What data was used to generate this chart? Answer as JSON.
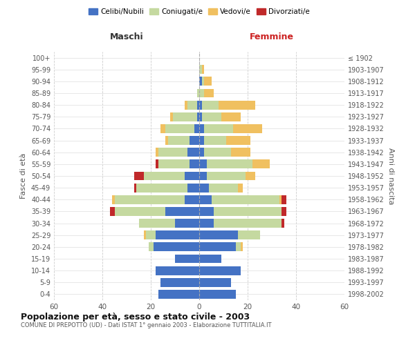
{
  "age_groups": [
    "0-4",
    "5-9",
    "10-14",
    "15-19",
    "20-24",
    "25-29",
    "30-34",
    "35-39",
    "40-44",
    "45-49",
    "50-54",
    "55-59",
    "60-64",
    "65-69",
    "70-74",
    "75-79",
    "80-84",
    "85-89",
    "90-94",
    "95-99",
    "100+"
  ],
  "birth_years": [
    "1998-2002",
    "1993-1997",
    "1988-1992",
    "1983-1987",
    "1978-1982",
    "1973-1977",
    "1968-1972",
    "1963-1967",
    "1958-1962",
    "1953-1957",
    "1948-1952",
    "1943-1947",
    "1938-1942",
    "1933-1937",
    "1928-1932",
    "1923-1927",
    "1918-1922",
    "1913-1917",
    "1908-1912",
    "1903-1907",
    "≤ 1902"
  ],
  "males": {
    "celibi": [
      17,
      16,
      18,
      10,
      19,
      18,
      10,
      14,
      6,
      5,
      6,
      4,
      5,
      4,
      2,
      1,
      1,
      0,
      0,
      0,
      0
    ],
    "coniugati": [
      0,
      0,
      0,
      0,
      2,
      4,
      15,
      21,
      29,
      21,
      17,
      13,
      12,
      9,
      12,
      10,
      4,
      1,
      0,
      0,
      0
    ],
    "vedovi": [
      0,
      0,
      0,
      0,
      0,
      1,
      0,
      0,
      1,
      0,
      0,
      0,
      1,
      1,
      2,
      1,
      1,
      0,
      0,
      0,
      0
    ],
    "divorziati": [
      0,
      0,
      0,
      0,
      0,
      0,
      0,
      2,
      0,
      1,
      4,
      1,
      0,
      0,
      0,
      0,
      0,
      0,
      0,
      0,
      0
    ]
  },
  "females": {
    "nubili": [
      15,
      13,
      17,
      9,
      15,
      16,
      6,
      6,
      5,
      4,
      3,
      3,
      2,
      2,
      2,
      1,
      1,
      0,
      1,
      0,
      0
    ],
    "coniugate": [
      0,
      0,
      0,
      0,
      2,
      9,
      28,
      28,
      28,
      12,
      16,
      19,
      11,
      9,
      12,
      8,
      7,
      2,
      1,
      1,
      0
    ],
    "vedove": [
      0,
      0,
      0,
      0,
      1,
      0,
      0,
      0,
      1,
      2,
      4,
      7,
      8,
      10,
      12,
      8,
      15,
      4,
      3,
      1,
      0
    ],
    "divorziate": [
      0,
      0,
      0,
      0,
      0,
      0,
      1,
      2,
      2,
      0,
      0,
      0,
      0,
      0,
      0,
      0,
      0,
      0,
      0,
      0,
      0
    ]
  },
  "colors": {
    "celibi_nubili": "#4472c4",
    "coniugati": "#c5d9a0",
    "vedovi": "#f0c060",
    "divorziati": "#c0292a"
  },
  "xlim": 60,
  "title": "Popolazione per età, sesso e stato civile - 2003",
  "subtitle": "COMUNE DI PREPOTTO (UD) - Dati ISTAT 1° gennaio 2003 - Elaborazione TUTTITALIA.IT",
  "ylabel": "Fasce di età",
  "ylabel_right": "Anni di nascita",
  "xlabel_left": "Maschi",
  "xlabel_right": "Femmine",
  "legend_labels": [
    "Celibi/Nubili",
    "Coniugati/e",
    "Vedovi/e",
    "Divorziati/e"
  ],
  "background_color": "#ffffff",
  "bar_height": 0.75
}
